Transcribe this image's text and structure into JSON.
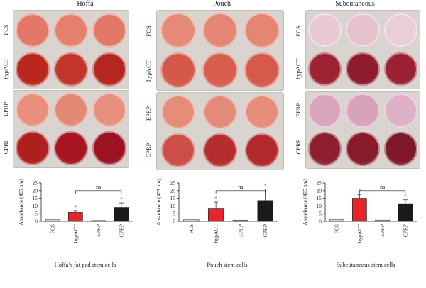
{
  "columns": [
    {
      "title": "Hoffa",
      "caption": "Hoffa’s fat pad stem cells",
      "plate_rows": [
        [
          "FCS",
          "hypACT"
        ],
        [
          "EPRP",
          "CPRP"
        ]
      ],
      "well_colors": [
        [
          "#e37867",
          "#e5806e",
          "#e27866",
          "#b8261e",
          "#c1352a",
          "#b42720"
        ],
        [
          "#e8907d",
          "#e48876",
          "#e88f7d",
          "#b01f1f",
          "#a61520",
          "#9c1220"
        ]
      ],
      "chart_data": {
        "type": "bar",
        "categories": [
          "FCS",
          "hypACT",
          "EPRP",
          "CPRP"
        ],
        "values": [
          1.0,
          5.8,
          0.5,
          9.0
        ],
        "errors": [
          0.2,
          1.2,
          0.2,
          3.0
        ],
        "bar_colors": [
          "#ffffff",
          "#e8242b",
          "#ffffff",
          "#1a1a1a"
        ],
        "significance_marks": [
          "",
          "*",
          "",
          "*"
        ],
        "comparison": {
          "from": "hypACT",
          "to": "CPRP",
          "label": "ns"
        },
        "ylabel": "Absorbance (405 nm)",
        "ylim": [
          0,
          25
        ],
        "yticks": [
          0,
          5,
          10,
          15,
          20,
          25
        ]
      }
    },
    {
      "title": "Pouch",
      "caption": "Pouch stem cells",
      "plate_rows": [
        [
          "FCS",
          "hypACT"
        ],
        [
          "EPRP",
          "CPRP"
        ]
      ],
      "well_colors": [
        [
          "#e58a78",
          "#e38675",
          "#e48673",
          "#d5594a",
          "#d85e4e",
          "#d65a4b"
        ],
        [
          "#e68d7a",
          "#e48a78",
          "#e68d7b",
          "#cc4f47",
          "#b52d2c",
          "#b02a2b"
        ]
      ],
      "chart_data": {
        "type": "bar",
        "categories": [
          "FCS",
          "hypACT",
          "EPRP",
          "CPRP"
        ],
        "values": [
          1.0,
          8.5,
          0.7,
          13.5
        ],
        "errors": [
          0.2,
          4.0,
          0.2,
          7.5
        ],
        "bar_colors": [
          "#ffffff",
          "#e8242b",
          "#ffffff",
          "#1a1a1a"
        ],
        "significance_marks": [
          "",
          "*",
          "",
          "*"
        ],
        "comparison": {
          "from": "hypACT",
          "to": "CPRP",
          "label": "ns"
        },
        "ylabel": "Absorbance (405 nm)",
        "ylim": [
          0,
          25
        ],
        "yticks": [
          0,
          5,
          10,
          15,
          20,
          25
        ]
      }
    },
    {
      "title": "Subcutaneous",
      "caption": "Subcutaneous stem cells",
      "plate_rows": [
        [
          "FCS",
          "hypACT"
        ],
        [
          "EPRP",
          "CPRP"
        ]
      ],
      "well_colors": [
        [
          "#e9c9d6",
          "#e6c2cf",
          "#eacdd9",
          "#9c2332",
          "#8e1c2c",
          "#992132"
        ],
        [
          "#d9a5bd",
          "#d8a2ba",
          "#dfb1c6",
          "#8d1f2f",
          "#871a2b",
          "#7c1829"
        ]
      ],
      "chart_data": {
        "type": "bar",
        "categories": [
          "FCS",
          "hypACT",
          "EPRP",
          "CPRP"
        ],
        "values": [
          1.0,
          15.0,
          0.8,
          11.5
        ],
        "errors": [
          0.2,
          2.5,
          0.2,
          2.5
        ],
        "bar_colors": [
          "#ffffff",
          "#e8242b",
          "#ffffff",
          "#1a1a1a"
        ],
        "significance_marks": [
          "",
          "*",
          "",
          "*"
        ],
        "comparison": {
          "from": "hypACT",
          "to": "CPRP",
          "label": "ns"
        },
        "ylabel": "Absorbance (405 nm)",
        "ylim": [
          0,
          25
        ],
        "yticks": [
          0,
          5,
          10,
          15,
          20,
          25
        ]
      }
    }
  ]
}
